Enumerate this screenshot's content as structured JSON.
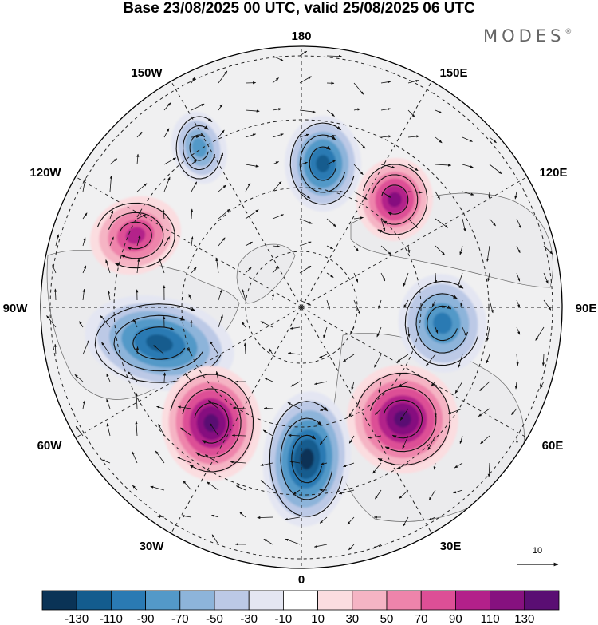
{
  "title": "Base 23/08/2025 00 UTC, valid 25/08/2025 06 UTC",
  "brand": "MODES",
  "brand_mark": "®",
  "longitudes": {
    "top": "180",
    "bottom": "0",
    "left": "90W",
    "right": "90E",
    "upper_left": "150W",
    "upper_right": "150E",
    "mid_upper_left": "120W",
    "mid_upper_right": "120E",
    "lower_left": "60W",
    "lower_right": "60E",
    "bottom_left": "30W",
    "bottom_right": "30E"
  },
  "vector_reference": "10",
  "colorbar": {
    "colors": [
      "#0a3356",
      "#135c8e",
      "#2a7ab3",
      "#5399c8",
      "#8db4da",
      "#bcc9e6",
      "#e4e6f2",
      "#ffffff",
      "#fbdde0",
      "#f5b4c4",
      "#ee84ab",
      "#dd4f96",
      "#b3208a",
      "#86117f",
      "#5a0e73"
    ],
    "ticks": [
      "-130",
      "-110",
      "-90",
      "-70",
      "-50",
      "-30",
      "-10",
      "10",
      "30",
      "50",
      "70",
      "90",
      "110",
      "130"
    ]
  },
  "anomalies": [
    {
      "sign": "neg",
      "peak": 100,
      "name": "anomaly-180-north"
    },
    {
      "sign": "neg",
      "peak": 75,
      "name": "anomaly-165w"
    },
    {
      "sign": "pos",
      "peak": 115,
      "name": "anomaly-150e"
    },
    {
      "sign": "pos",
      "peak": 90,
      "name": "anomaly-120w"
    },
    {
      "sign": "neg",
      "peak": 95,
      "name": "anomaly-90e"
    },
    {
      "sign": "neg",
      "peak": 110,
      "name": "anomaly-80w"
    },
    {
      "sign": "pos",
      "peak": 130,
      "name": "anomaly-45w"
    },
    {
      "sign": "neg",
      "peak": 135,
      "name": "anomaly-0"
    },
    {
      "sign": "pos",
      "peak": 125,
      "name": "anomaly-50e"
    }
  ]
}
